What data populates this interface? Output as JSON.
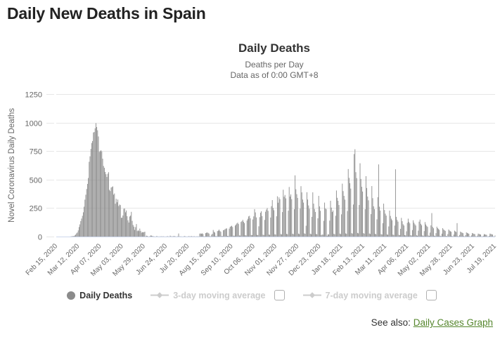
{
  "page": {
    "title": "Daily New Deaths in Spain"
  },
  "chart": {
    "title": "Daily Deaths",
    "subtitle1": "Deaths per Day",
    "subtitle2": "Data as of 0:00 GMT+8",
    "y_axis_title": "Novel Coronavirus Daily Deaths"
  },
  "legend": {
    "daily_deaths": "Daily Deaths",
    "ma3": "3-day moving average",
    "ma7": "7-day moving average",
    "ma3_checked": false,
    "ma7_checked": false
  },
  "footer": {
    "see_also": "See also:",
    "link": "Daily Cases Graph"
  },
  "colors": {
    "bar": "#8b8b8b",
    "grid": "#e6e6e6",
    "axis_line": "#ccd6eb",
    "tick_text": "#666666",
    "legend_inactive": "#cccccc",
    "link_green": "#55862d",
    "title_text": "#333333",
    "subtitle_text": "#666666"
  },
  "chart_data": {
    "type": "bar",
    "title": "Daily Deaths",
    "subtitle": [
      "Deaths per Day",
      "Data as of 0:00 GMT+8"
    ],
    "ylabel": "Novel Coronavirus Daily Deaths",
    "ylim": [
      0,
      1250
    ],
    "y_ticks": [
      0,
      250,
      500,
      750,
      1000,
      1250
    ],
    "grid": true,
    "legend_position": "bottom",
    "series_name": "Daily Deaths",
    "x_start_date": "Feb 15, 2020",
    "x_end_date": "Jul 19, 2021",
    "x_unit": "day",
    "x_tick_interval_days": 26,
    "x_tick_labels": [
      "Feb 15, 2020",
      "Mar 12, 2020",
      "Apr 07, 2020",
      "May 03, 2020",
      "May 29, 2020",
      "Jun 24, 2020",
      "Jul 20, 2020",
      "Aug 15, 2020",
      "Sep 10, 2020",
      "Oct 06, 2020",
      "Nov 01, 2020",
      "Nov 27, 2020",
      "Dec 23, 2020",
      "Jan 18, 2021",
      "Feb 13, 2021",
      "Mar 11, 2021",
      "Apr 06, 2021",
      "May 02, 2021",
      "May 28, 2021",
      "Jun 23, 2021",
      "Jul 19, 2021"
    ],
    "values": [
      0,
      0,
      0,
      0,
      0,
      0,
      0,
      0,
      0,
      0,
      0,
      0,
      0,
      0,
      0,
      0,
      0,
      1,
      2,
      3,
      5,
      5,
      10,
      17,
      28,
      36,
      54,
      84,
      107,
      136,
      158,
      182,
      213,
      262,
      324,
      367,
      417,
      462,
      514,
      656,
      704,
      769,
      821,
      838,
      913,
      917,
      950,
      995,
      961,
      932,
      878,
      743,
      749,
      757,
      747,
      683,
      619,
      603,
      567,
      547,
      523,
      551,
      565,
      410,
      399,
      430,
      435,
      440,
      368,
      378,
      288,
      331,
      301,
      325,
      268,
      281,
      276,
      164,
      166,
      185,
      244,
      246,
      213,
      229,
      179,
      143,
      123,
      176,
      184,
      217,
      138,
      102,
      87,
      59,
      83,
      110,
      48,
      56,
      48,
      70,
      50,
      35,
      39,
      38,
      39,
      43,
      2,
      8,
      5,
      1,
      1,
      4,
      10,
      8,
      5,
      3,
      1,
      1,
      0,
      5,
      2,
      1,
      0,
      2,
      1,
      3,
      1,
      2,
      1,
      0,
      1,
      2,
      3,
      1,
      0,
      8,
      3,
      1,
      2,
      4,
      5,
      2,
      1,
      0,
      3,
      27,
      2,
      1,
      2,
      0,
      1,
      2,
      4,
      2,
      1,
      0,
      2,
      3,
      2,
      1,
      5,
      2,
      1,
      2,
      3,
      0,
      2,
      1,
      2,
      1,
      26,
      27,
      25,
      28,
      23,
      3,
      2,
      30,
      34,
      36,
      32,
      26,
      3,
      2,
      16,
      24,
      58,
      42,
      35,
      4,
      3,
      48,
      52,
      61,
      50,
      42,
      5,
      4,
      56,
      58,
      65,
      70,
      72,
      6,
      5,
      70,
      86,
      90,
      95,
      84,
      8,
      7,
      96,
      105,
      115,
      122,
      110,
      10,
      9,
      128,
      135,
      147,
      130,
      118,
      12,
      10,
      141,
      156,
      177,
      182,
      160,
      14,
      12,
      150,
      177,
      241,
      212,
      168,
      15,
      13,
      90,
      170,
      209,
      222,
      180,
      16,
      14,
      146,
      218,
      237,
      250,
      226,
      18,
      15,
      167,
      267,
      320,
      251,
      231,
      20,
      17,
      178,
      353,
      297,
      344,
      328,
      22,
      19,
      215,
      411,
      349,
      365,
      335,
      24,
      20,
      227,
      435,
      351,
      370,
      328,
      25,
      21,
      240,
      537,
      415,
      372,
      339,
      26,
      22,
      245,
      442,
      388,
      325,
      298,
      28,
      24,
      95,
      389,
      325,
      273,
      244,
      25,
      21,
      173,
      388,
      289,
      242,
      216,
      23,
      20,
      160,
      357,
      265,
      226,
      12,
      19,
      16,
      138,
      298,
      246,
      241,
      8,
      21,
      18,
      140,
      314,
      254,
      216,
      229,
      24,
      20,
      182,
      404,
      340,
      314,
      277,
      26,
      22,
      195,
      464,
      399,
      357,
      324,
      28,
      24,
      224,
      592,
      515,
      468,
      421,
      30,
      26,
      281,
      724,
      766,
      565,
      513,
      32,
      28,
      277,
      643,
      506,
      437,
      395,
      30,
      26,
      240,
      530,
      426,
      351,
      318,
      27,
      23,
      197,
      443,
      337,
      266,
      241,
      24,
      20,
      151,
      345,
      633,
      262,
      228,
      21,
      18,
      117,
      289,
      233,
      201,
      184,
      19,
      16,
      89,
      228,
      181,
      157,
      143,
      17,
      14,
      96,
      590,
      173,
      146,
      131,
      15,
      12,
      68,
      164,
      135,
      108,
      97,
      13,
      10,
      46,
      121,
      157,
      128,
      116,
      12,
      9,
      57,
      143,
      122,
      108,
      97,
      11,
      8,
      52,
      131,
      149,
      112,
      99,
      10,
      7,
      48,
      127,
      106,
      94,
      85,
      9,
      6,
      35,
      98,
      206,
      85,
      73,
      8,
      5,
      30,
      87,
      74,
      66,
      59,
      7,
      4,
      26,
      74,
      63,
      56,
      50,
      6,
      3,
      21,
      62,
      53,
      47,
      42,
      5,
      2,
      17,
      52,
      45,
      40,
      118,
      4,
      2,
      14,
      44,
      38,
      34,
      30,
      4,
      2,
      12,
      37,
      32,
      28,
      25,
      3,
      1,
      10,
      31,
      27,
      24,
      21,
      3,
      1,
      8,
      26,
      23,
      20,
      18,
      2,
      1,
      7,
      22,
      19,
      17,
      15,
      2,
      1,
      6,
      26,
      23,
      20,
      18,
      2,
      1,
      9
    ]
  }
}
